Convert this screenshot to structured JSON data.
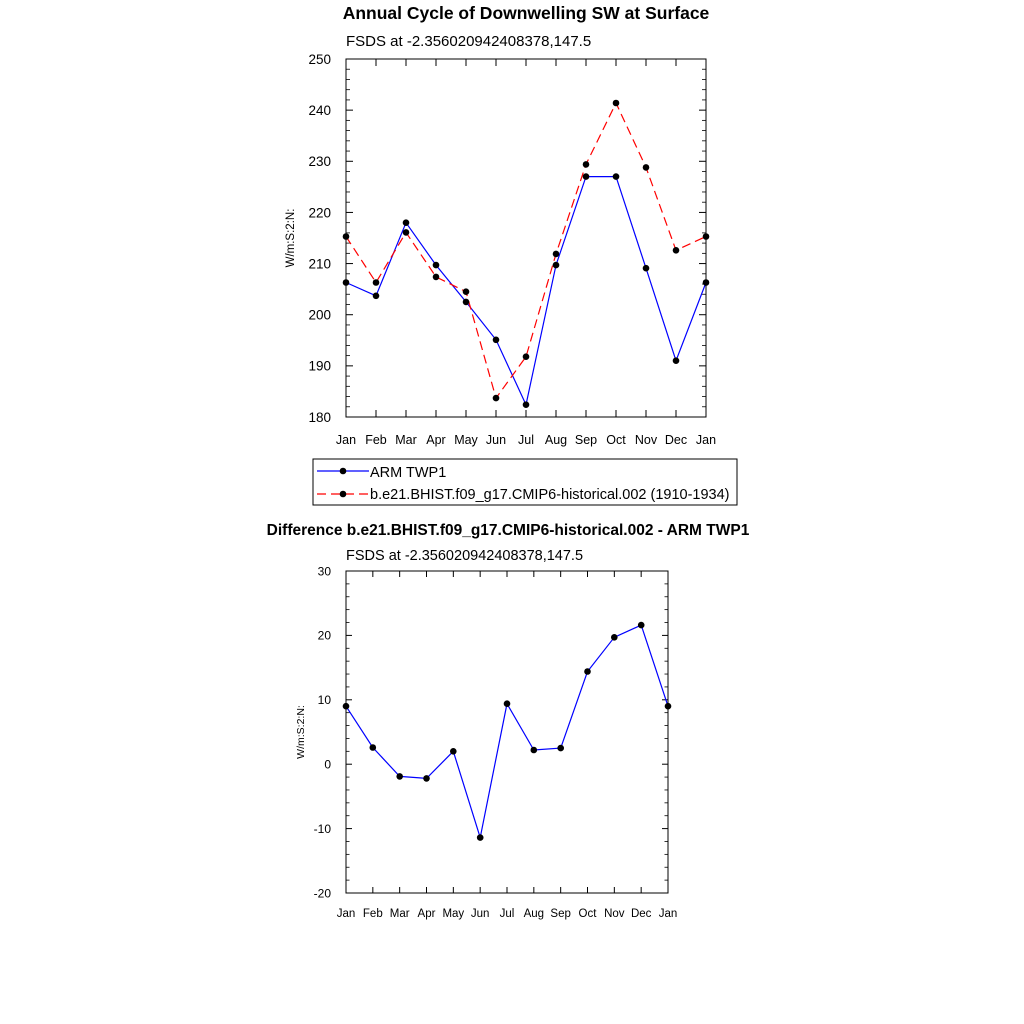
{
  "chart_data": [
    {
      "type": "line",
      "title": "Annual Cycle of Downwelling SW at Surface",
      "subtitle": "FSDS at -2.356020942408378,147.5",
      "ylabel": "W/m:S:2:N:",
      "xlabel": "",
      "categories": [
        "Jan",
        "Feb",
        "Mar",
        "Apr",
        "May",
        "Jun",
        "Jul",
        "Aug",
        "Sep",
        "Oct",
        "Nov",
        "Dec",
        "Jan"
      ],
      "ylim": [
        180,
        250
      ],
      "yticks": [
        180,
        190,
        200,
        210,
        220,
        230,
        240,
        250
      ],
      "grid": false,
      "legend_position": "bottom",
      "series": [
        {
          "name": "ARM TWP1",
          "color": "#0000ff",
          "style": "solid",
          "values": [
            206.3,
            203.7,
            218.0,
            209.7,
            202.5,
            195.1,
            182.4,
            209.7,
            227.0,
            227.0,
            209.1,
            191.0,
            206.3
          ]
        },
        {
          "name": "b.e21.BHIST.f09_g17.CMIP6-historical.002 (1910-1934)",
          "color": "#ff0000",
          "style": "dashed",
          "values": [
            215.3,
            206.3,
            216.1,
            207.4,
            204.5,
            183.7,
            191.8,
            211.9,
            229.4,
            241.4,
            228.8,
            212.6,
            215.3
          ]
        }
      ]
    },
    {
      "type": "line",
      "title": "Difference b.e21.BHIST.f09_g17.CMIP6-historical.002 - ARM TWP1",
      "subtitle": "FSDS at -2.356020942408378,147.5",
      "ylabel": "W/m:S:2:N:",
      "xlabel": "",
      "categories": [
        "Jan",
        "Feb",
        "Mar",
        "Apr",
        "May",
        "Jun",
        "Jul",
        "Aug",
        "Sep",
        "Oct",
        "Nov",
        "Dec",
        "Jan"
      ],
      "ylim": [
        -20,
        30
      ],
      "yticks": [
        -20,
        -10,
        0,
        10,
        20,
        30
      ],
      "grid": false,
      "series": [
        {
          "color": "#0000ff",
          "style": "solid",
          "values": [
            9.0,
            2.6,
            -1.9,
            -2.2,
            2.0,
            -11.4,
            9.4,
            2.2,
            2.5,
            14.4,
            19.7,
            21.6,
            9.0
          ]
        }
      ]
    }
  ]
}
